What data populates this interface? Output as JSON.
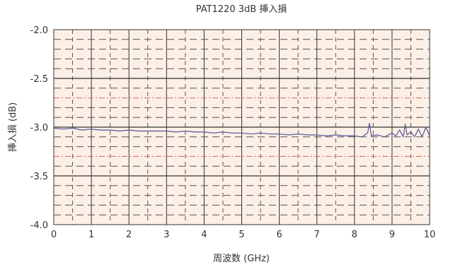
{
  "chart_data": {
    "type": "line",
    "title": "PAT1220 3dB 挿入損",
    "xlabel": "周波数 (GHz)",
    "ylabel": "挿入損 (dB)",
    "xlim": [
      0,
      10
    ],
    "ylim": [
      -4.0,
      -2.0
    ],
    "x_ticks": [
      0,
      1,
      2,
      3,
      4,
      5,
      6,
      7,
      8,
      9,
      10
    ],
    "x_tick_labels": [
      "0",
      "1",
      "2",
      "3",
      "4",
      "5",
      "6",
      "7",
      "8",
      "9",
      "10"
    ],
    "y_ticks": [
      -2.0,
      -2.5,
      -3.0,
      -3.5,
      -4.0
    ],
    "y_tick_labels": [
      "-2.0",
      "-2.5",
      "-3.0",
      "-3.5",
      "-4.0"
    ],
    "limit_lines": [
      -2.7,
      -3.3
    ],
    "grid": true,
    "series": [
      {
        "x": [
          0.0,
          0.25,
          0.5,
          0.75,
          1.0,
          1.25,
          1.5,
          1.75,
          2.0,
          2.25,
          2.5,
          2.75,
          3.0,
          3.25,
          3.5,
          3.75,
          4.0,
          4.25,
          4.5,
          4.75,
          5.0,
          5.25,
          5.5,
          5.75,
          6.0,
          6.25,
          6.5,
          6.75,
          7.0,
          7.25,
          7.5,
          7.75,
          8.0,
          8.2,
          8.35,
          8.4,
          8.45,
          8.6,
          8.8,
          9.0,
          9.1,
          9.2,
          9.3,
          9.35,
          9.4,
          9.5,
          9.6,
          9.7,
          9.8,
          9.9,
          10.0
        ],
        "y": [
          -3.01,
          -3.02,
          -3.01,
          -3.03,
          -3.02,
          -3.03,
          -3.03,
          -3.04,
          -3.03,
          -3.04,
          -3.04,
          -3.04,
          -3.04,
          -3.05,
          -3.04,
          -3.05,
          -3.05,
          -3.06,
          -3.05,
          -3.06,
          -3.06,
          -3.07,
          -3.06,
          -3.07,
          -3.07,
          -3.08,
          -3.07,
          -3.08,
          -3.08,
          -3.09,
          -3.08,
          -3.09,
          -3.09,
          -3.1,
          -3.06,
          -2.96,
          -3.09,
          -3.08,
          -3.1,
          -3.06,
          -3.09,
          -3.03,
          -3.1,
          -2.97,
          -3.08,
          -3.05,
          -3.1,
          -3.02,
          -3.1,
          -3.0,
          -3.09
        ],
        "color": "#55559a"
      }
    ],
    "colors": {
      "plot_bg": "#fcefe6",
      "grid_major": "#333333",
      "grid_minor": "#555555",
      "limit": "#e06060",
      "right_edge": "#dd2222"
    }
  }
}
